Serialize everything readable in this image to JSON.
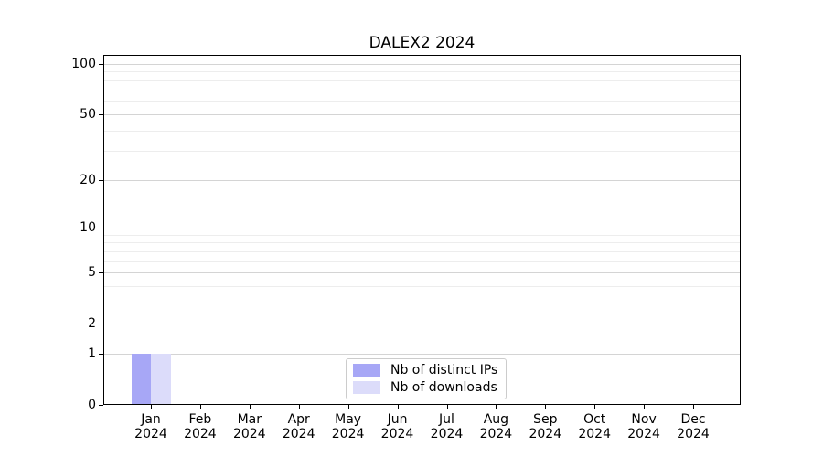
{
  "chart_data": {
    "type": "bar",
    "title": "DALEX2 2024",
    "categories": [
      "Jan",
      "Feb",
      "Mar",
      "Apr",
      "May",
      "Jun",
      "Jul",
      "Aug",
      "Sep",
      "Oct",
      "Nov",
      "Dec"
    ],
    "category_year": "2024",
    "series": [
      {
        "name": "Nb of distinct IPs",
        "color": "#a7a7f6",
        "values": [
          1,
          0,
          0,
          0,
          0,
          0,
          0,
          0,
          0,
          0,
          0,
          0
        ]
      },
      {
        "name": "Nb of downloads",
        "color": "#dcdcfa",
        "values": [
          1,
          0,
          0,
          0,
          0,
          0,
          0,
          0,
          0,
          0,
          0,
          0
        ]
      }
    ],
    "xlabel": "",
    "ylabel": "",
    "yscale": "log1p",
    "ylim": [
      0,
      113
    ],
    "y_major_ticks": [
      0,
      1,
      2,
      5,
      10,
      20,
      50,
      100
    ],
    "y_minor_ticks": [
      3,
      4,
      6,
      7,
      8,
      9,
      30,
      40,
      60,
      70,
      80,
      90
    ],
    "grid": "horizontal",
    "legend_position": "inside-bottom-center"
  },
  "colors": {
    "bar_distinct_ips": "#a7a7f6",
    "bar_downloads": "#dcdcfa",
    "grid_major": "#d4d4d4",
    "grid_minor": "#ededed",
    "axis": "#000000",
    "legend_border": "#cccccc",
    "background": "#ffffff"
  }
}
